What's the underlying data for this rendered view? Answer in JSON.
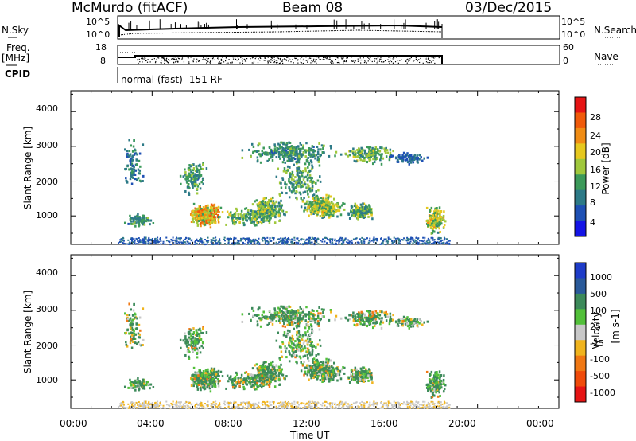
{
  "header": {
    "station": "McMurdo (fitACF)",
    "beam": "Beam 08",
    "date": "03/Dec/2015"
  },
  "top_panels": {
    "nsky_label": "N.Sky",
    "nsky_ticks": [
      "10^5",
      "10^0"
    ],
    "nsearch_label": "N.Search",
    "nsearch_ticks": [
      "10^5",
      "10^0"
    ],
    "freq_label": "Freq.",
    "freq_unit": "[MHz]",
    "freq_ticks": [
      "18",
      "8"
    ],
    "nave_label": "Nave",
    "nave_ticks": [
      "60",
      "0"
    ],
    "cpid_label": "CPID",
    "cpid_text": "normal (fast) -151 RF"
  },
  "chart_data": [
    {
      "type": "heatmap",
      "name": "power-panel",
      "ylabel": "Slant Range [km]",
      "ylim": [
        180,
        4600
      ],
      "yticks": [
        "1000",
        "2000",
        "3000",
        "4000"
      ],
      "xlim": [
        0,
        24
      ],
      "colorbar_label": "Power [dB]",
      "colorbar_ticks": [
        "4",
        "8",
        "12",
        "16",
        "20",
        "24",
        "28"
      ],
      "colorbar_colors": [
        "#1414e6",
        "#1e50b4",
        "#2d7a87",
        "#3c9a5a",
        "#a0c83c",
        "#e6c81e",
        "#f08c14",
        "#f05a0a",
        "#e61414"
      ]
    },
    {
      "type": "heatmap",
      "name": "velocity-panel",
      "ylabel": "Slant Range [km]",
      "ylim": [
        180,
        4600
      ],
      "yticks": [
        "1000",
        "2000",
        "3000",
        "4000"
      ],
      "xlim": [
        0,
        24
      ],
      "xlabel": "Time UT",
      "xticks": [
        "00:00",
        "04:00",
        "08:00",
        "12:00",
        "16:00",
        "20:00",
        "00:00"
      ],
      "colorbar_label": "Velocity",
      "colorbar_unit": "[m s-1]",
      "colorbar_ticks": [
        "1000",
        "500",
        "100",
        "25",
        "-25",
        "-100",
        "-500",
        "-1000"
      ],
      "colorbar_colors": [
        "#1e3cc8",
        "#2a5a9a",
        "#3c8a5a",
        "#52c03a",
        "#c8c8c8",
        "#f0b41e",
        "#f07814",
        "#f04b0a",
        "#e61414"
      ]
    }
  ]
}
